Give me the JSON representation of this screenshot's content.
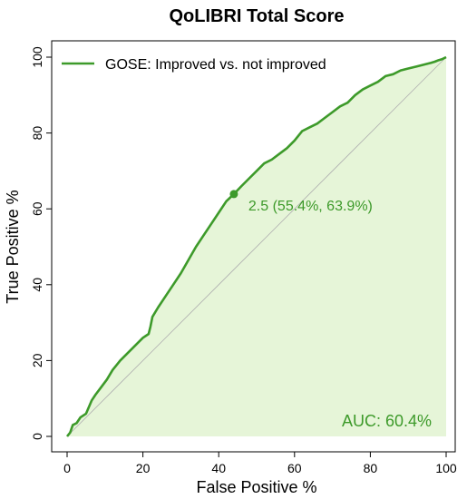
{
  "chart_data": {
    "type": "line",
    "title": "QoLIBRI Total Score",
    "xlabel": "False Positive %",
    "ylabel": "True Positive %",
    "xlim": [
      0,
      100
    ],
    "ylim": [
      0,
      100
    ],
    "x_ticks": [
      0,
      20,
      40,
      60,
      80,
      100
    ],
    "y_ticks": [
      0,
      20,
      40,
      60,
      80,
      100
    ],
    "x_tick_labels": [
      "0",
      "20",
      "40",
      "60",
      "80",
      "100"
    ],
    "y_tick_labels": [
      "0",
      "20",
      "40",
      "60",
      "80",
      "100"
    ],
    "grid": false,
    "legend_position": "top-left",
    "series": [
      {
        "name": "GOSE: Improved vs. not improved",
        "color": "#3d9a2a",
        "fill_color": "#e6f5d8",
        "x": [
          0,
          0.8,
          1.5,
          2.5,
          3.5,
          5,
          6.5,
          7.5,
          9,
          10.5,
          12,
          14,
          16,
          18,
          20,
          21.5,
          22,
          22.5,
          24,
          26,
          28,
          30,
          32,
          34,
          36,
          38,
          40,
          42,
          44,
          46,
          48,
          50,
          52,
          54,
          56,
          58,
          60,
          62,
          64,
          66,
          68,
          70,
          72,
          74,
          76,
          78,
          80,
          82,
          84,
          86,
          88,
          90,
          92,
          94,
          96,
          97,
          98,
          99,
          100
        ],
        "y": [
          0,
          1,
          3,
          3.5,
          5,
          6,
          9.5,
          11,
          13,
          15,
          17.5,
          20,
          22,
          24,
          26,
          27,
          29,
          31.5,
          34,
          37,
          40,
          43,
          46.5,
          50,
          53,
          56,
          59,
          62,
          63.9,
          66,
          68,
          70,
          72,
          73,
          74.5,
          76,
          78,
          80.5,
          81.5,
          82.5,
          84,
          85.5,
          87,
          88,
          90,
          91.5,
          92.5,
          93.5,
          95,
          95.5,
          96.5,
          97,
          97.5,
          98,
          98.5,
          98.8,
          99.2,
          99.5,
          100
        ]
      }
    ],
    "reference_line": {
      "x": [
        0,
        100
      ],
      "y": [
        0,
        100
      ],
      "color": "#b0b0b0"
    },
    "threshold_point": {
      "x": 44,
      "y": 63.9,
      "label": "2.5 (55.4%, 63.9%)"
    },
    "auc_label": "AUC: 60.4%"
  }
}
